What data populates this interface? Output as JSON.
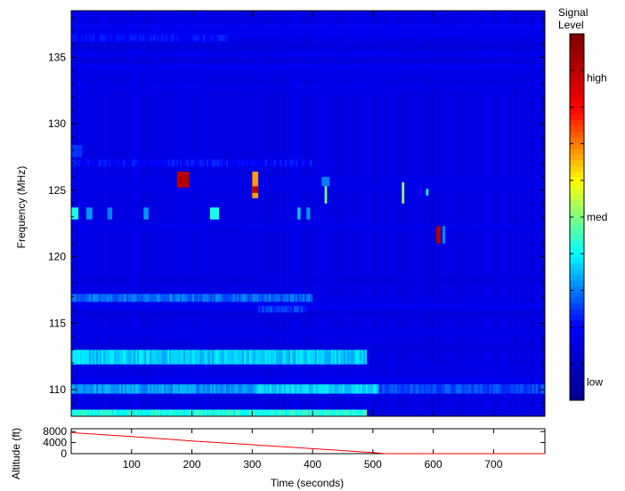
{
  "chart_data": [
    {
      "type": "heatmap",
      "title": "",
      "xlabel": "",
      "ylabel": "Frequency (MHz)",
      "xlim": [
        0,
        785
      ],
      "ylim": [
        108,
        138.5
      ],
      "xticks": [
        100,
        200,
        300,
        400,
        500,
        600,
        700
      ],
      "yticks": [
        110,
        115,
        120,
        125,
        130,
        135
      ],
      "colorscale": [
        "#00008f",
        "#0000ff",
        "#00ffff",
        "#ffff00",
        "#ff0000",
        "#800000"
      ],
      "background_level": 0.15,
      "colorbar": {
        "title_lines": [
          "Signal",
          "Level"
        ],
        "labels": [
          {
            "text": "high",
            "value": 0.88
          },
          {
            "text": "med",
            "value": 0.5
          },
          {
            "text": "low",
            "value": 0.05
          }
        ]
      },
      "bands": [
        {
          "f0": 108.0,
          "f1": 108.5,
          "t0": 0,
          "t1": 490,
          "level": 0.42
        },
        {
          "f0": 109.7,
          "f1": 110.4,
          "t0": 0,
          "t1": 305,
          "level": 0.32
        },
        {
          "f0": 109.7,
          "f1": 110.4,
          "t0": 305,
          "t1": 510,
          "level": 0.38
        },
        {
          "f0": 109.7,
          "f1": 110.4,
          "t0": 510,
          "t1": 785,
          "level": 0.26
        },
        {
          "f0": 111.9,
          "f1": 113.0,
          "t0": 0,
          "t1": 490,
          "level": 0.36
        },
        {
          "f0": 116.6,
          "f1": 117.2,
          "t0": 0,
          "t1": 400,
          "level": 0.28
        },
        {
          "f0": 115.8,
          "f1": 116.3,
          "t0": 310,
          "t1": 390,
          "level": 0.24
        },
        {
          "f0": 122.8,
          "f1": 123.7,
          "t0": 0,
          "t1": 12,
          "level": 0.42
        },
        {
          "f0": 122.8,
          "f1": 123.7,
          "t0": 25,
          "t1": 35,
          "level": 0.32
        },
        {
          "f0": 122.8,
          "f1": 123.7,
          "t0": 60,
          "t1": 68,
          "level": 0.3
        },
        {
          "f0": 122.8,
          "f1": 123.7,
          "t0": 120,
          "t1": 128,
          "level": 0.32
        },
        {
          "f0": 122.8,
          "f1": 123.7,
          "t0": 230,
          "t1": 245,
          "level": 0.42
        },
        {
          "f0": 122.8,
          "f1": 123.7,
          "t0": 375,
          "t1": 380,
          "level": 0.36
        },
        {
          "f0": 122.8,
          "f1": 123.7,
          "t0": 390,
          "t1": 396,
          "level": 0.32
        },
        {
          "f0": 125.2,
          "f1": 126.4,
          "t0": 175,
          "t1": 195,
          "level": 0.92
        },
        {
          "f0": 124.4,
          "f1": 126.4,
          "t0": 300,
          "t1": 310,
          "level": 0.68
        },
        {
          "f0": 124.8,
          "f1": 125.3,
          "t0": 300,
          "t1": 310,
          "level": 0.9
        },
        {
          "f0": 124.0,
          "f1": 125.6,
          "t0": 420,
          "t1": 424,
          "level": 0.5
        },
        {
          "f0": 124.0,
          "f1": 125.6,
          "t0": 548,
          "t1": 552,
          "level": 0.52
        },
        {
          "f0": 125.3,
          "f1": 126.0,
          "t0": 415,
          "t1": 428,
          "level": 0.3
        },
        {
          "f0": 124.6,
          "f1": 125.1,
          "t0": 588,
          "t1": 592,
          "level": 0.42
        },
        {
          "f0": 121.0,
          "f1": 122.3,
          "t0": 605,
          "t1": 612,
          "level": 0.92
        },
        {
          "f0": 121.0,
          "f1": 122.3,
          "t0": 615,
          "t1": 620,
          "level": 0.3
        },
        {
          "f0": 126.8,
          "f1": 127.3,
          "t0": 0,
          "t1": 400,
          "level": 0.2
        },
        {
          "f0": 127.5,
          "f1": 128.4,
          "t0": 0,
          "t1": 18,
          "level": 0.24
        },
        {
          "f0": 136.2,
          "f1": 136.7,
          "t0": 0,
          "t1": 260,
          "level": 0.2
        }
      ]
    },
    {
      "type": "line",
      "title": "",
      "xlabel": "Time (seconds)",
      "ylabel": "Altitude (ft)",
      "xlim": [
        0,
        785
      ],
      "ylim": [
        0,
        9000
      ],
      "xticks": [
        100,
        200,
        300,
        400,
        500,
        600,
        700
      ],
      "yticks": [
        0,
        4000,
        8000
      ],
      "line_color": "#ff0000",
      "series": [
        {
          "x": [
            0,
            100,
            200,
            300,
            400,
            500,
            520,
            785
          ],
          "values": [
            7600,
            6200,
            4600,
            3200,
            1800,
            400,
            0,
            0
          ]
        }
      ]
    }
  ]
}
